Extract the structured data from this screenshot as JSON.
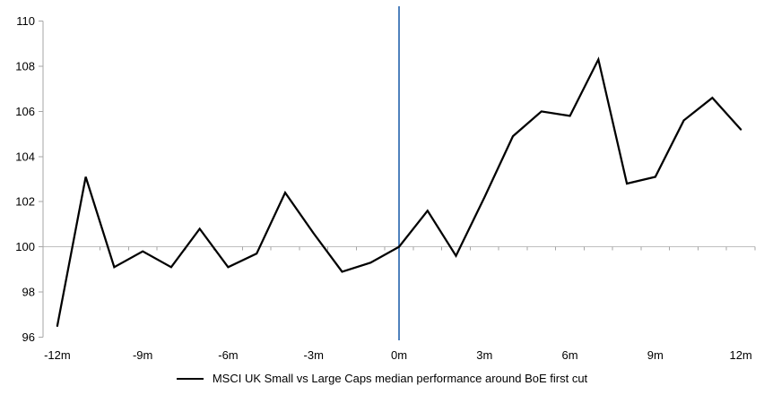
{
  "chart_data": {
    "type": "line",
    "title": "",
    "x": [
      -12,
      -11,
      -10,
      -9,
      -8,
      -7,
      -6,
      -5,
      -4,
      -3,
      -2,
      -1,
      0,
      1,
      2,
      3,
      4,
      5,
      6,
      7,
      8,
      9,
      10,
      11,
      12
    ],
    "series": [
      {
        "name": "MSCI UK Small vs Large Caps median performance around BoE first cut",
        "values": [
          96.5,
          103.1,
          99.1,
          99.8,
          99.1,
          100.8,
          99.1,
          99.7,
          102.4,
          100.6,
          98.9,
          99.3,
          100.0,
          101.6,
          99.6,
          102.2,
          104.9,
          106.0,
          105.8,
          108.3,
          102.8,
          103.1,
          105.6,
          106.6,
          105.2
        ]
      }
    ],
    "x_tick_labels": [
      {
        "x": -12,
        "label": "-12m"
      },
      {
        "x": -9,
        "label": "-9m"
      },
      {
        "x": -6,
        "label": "-6m"
      },
      {
        "x": -3,
        "label": "-3m"
      },
      {
        "x": 0,
        "label": "0m"
      },
      {
        "x": 3,
        "label": "3m"
      },
      {
        "x": 6,
        "label": "6m"
      },
      {
        "x": 9,
        "label": "9m"
      },
      {
        "x": 12,
        "label": "12m"
      }
    ],
    "y_ticks": [
      96,
      98,
      100,
      102,
      104,
      106,
      108,
      110
    ],
    "ylim": [
      96,
      110
    ],
    "baseline_value": 100,
    "event_line_x": 0,
    "grid": "baseline-only",
    "legend_position": "bottom",
    "xlabel": "",
    "ylabel": ""
  },
  "colors": {
    "series_line": "#000000",
    "event_line": "#4f81bd",
    "baseline": "#bfbfbf",
    "axis": "#a6a6a6",
    "text": "#000000",
    "background": "#ffffff"
  }
}
